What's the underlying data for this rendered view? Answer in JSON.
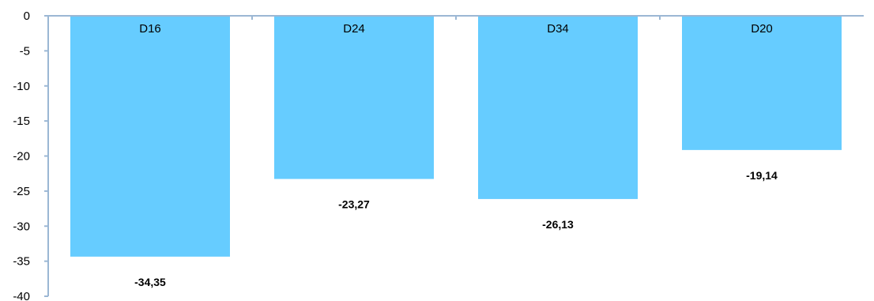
{
  "chart_data": {
    "type": "bar",
    "categories": [
      "D16",
      "D24",
      "D34",
      "D20"
    ],
    "values": [
      -34.35,
      -23.27,
      -26.13,
      -19.14
    ],
    "value_labels": [
      "-34,35",
      "-23,27",
      "-26,13",
      "-19,14"
    ],
    "title": "",
    "xlabel": "",
    "ylabel": "",
    "ylim": [
      -40,
      0
    ],
    "yticks": [
      0,
      -5,
      -10,
      -15,
      -20,
      -25,
      -30,
      -35,
      -40
    ],
    "ytick_labels": [
      "0",
      "-5",
      "-10",
      "-15",
      "-20",
      "-25",
      "-30",
      "-35",
      "-40"
    ],
    "grid": false,
    "legend": "none",
    "bar_color": "#66CCFF",
    "axis_color": "#9BB7D4"
  }
}
